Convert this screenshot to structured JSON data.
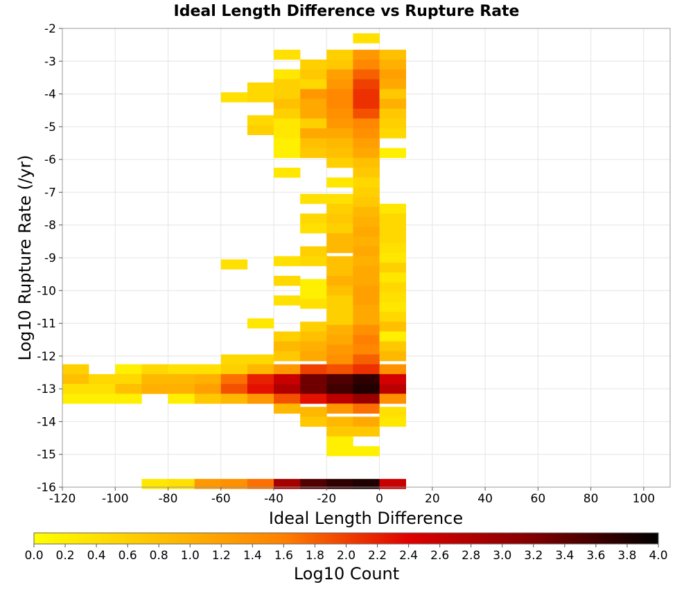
{
  "chart_data": {
    "type": "heatmap",
    "title": "Ideal Length Difference vs Rupture Rate",
    "xlabel": "Ideal Length Difference",
    "ylabel": "Log10 Rupture Rate (/yr)",
    "colorbar_label": "Log10 Count",
    "xlim": [
      -120,
      110
    ],
    "ylim": [
      -16,
      -2
    ],
    "x_ticks": [
      -120,
      -100,
      -80,
      -60,
      -40,
      -20,
      0,
      20,
      40,
      60,
      80,
      100
    ],
    "y_ticks": [
      -2,
      -3,
      -4,
      -5,
      -6,
      -7,
      -8,
      -9,
      -10,
      -11,
      -12,
      -13,
      -14,
      -15,
      -16
    ],
    "x_tick_labels": [
      "-120",
      "-100",
      "-80",
      "-60",
      "-40",
      "-20",
      "0",
      "20",
      "40",
      "60",
      "80",
      "100"
    ],
    "y_tick_labels": [
      "-2",
      "-3",
      "-4",
      "-5",
      "-6",
      "-7",
      "-8",
      "-9",
      "-10",
      "-11",
      "-12",
      "-13",
      "-14",
      "-15",
      "-16"
    ],
    "color_range": [
      0,
      4
    ],
    "colorbar_ticks": [
      "0.0",
      "0.2",
      "0.4",
      "0.6",
      "0.8",
      "1.0",
      "1.2",
      "1.4",
      "1.6",
      "1.8",
      "2.0",
      "2.2",
      "2.4",
      "2.6",
      "2.8",
      "3.0",
      "3.2",
      "3.4",
      "3.6",
      "3.8",
      "4.0"
    ],
    "colormap": [
      "#ffff00",
      "#ffc000",
      "#ff8000",
      "#e00000",
      "#800000",
      "#000000"
    ],
    "grid": true,
    "bin_width_x": 10,
    "bin_height_y": 0.3,
    "columns": [
      {
        "x0": -120,
        "cells": [
          [
            -12.4,
            0.6
          ],
          [
            -12.7,
            0.8
          ],
          [
            -13.0,
            0.4
          ],
          [
            -13.3,
            0.2
          ]
        ]
      },
      {
        "x0": -110,
        "cells": [
          [
            -12.7,
            0.5
          ],
          [
            -13.0,
            0.4
          ],
          [
            -13.3,
            0.2
          ]
        ]
      },
      {
        "x0": -100,
        "cells": [
          [
            -12.4,
            0.2
          ],
          [
            -12.7,
            0.5
          ],
          [
            -13.0,
            0.8
          ],
          [
            -13.3,
            0.2
          ]
        ]
      },
      {
        "x0": -90,
        "cells": [
          [
            -12.4,
            0.5
          ],
          [
            -12.7,
            0.9
          ],
          [
            -13.0,
            1.0
          ],
          [
            -15.9,
            0.3
          ]
        ]
      },
      {
        "x0": -80,
        "cells": [
          [
            -12.4,
            0.4
          ],
          [
            -12.7,
            0.9
          ],
          [
            -13.0,
            1.0
          ],
          [
            -13.3,
            0.2
          ],
          [
            -15.9,
            0.4
          ]
        ]
      },
      {
        "x0": -70,
        "cells": [
          [
            -12.4,
            0.4
          ],
          [
            -12.7,
            1.0
          ],
          [
            -13.0,
            1.2
          ],
          [
            -13.3,
            0.7
          ],
          [
            -15.9,
            1.3
          ]
        ]
      },
      {
        "x0": -60,
        "cells": [
          [
            -4.1,
            0.4
          ],
          [
            -9.2,
            0.4
          ],
          [
            -12.1,
            0.5
          ],
          [
            -12.4,
            0.6
          ],
          [
            -12.7,
            1.7
          ],
          [
            -13.0,
            1.9
          ],
          [
            -13.3,
            0.9
          ],
          [
            -15.9,
            1.4
          ]
        ]
      },
      {
        "x0": -50,
        "cells": [
          [
            -3.8,
            0.5
          ],
          [
            -4.1,
            0.5
          ],
          [
            -4.8,
            0.5
          ],
          [
            -5.1,
            0.6
          ],
          [
            -11.0,
            0.3
          ],
          [
            -12.1,
            0.5
          ],
          [
            -12.4,
            0.9
          ],
          [
            -12.7,
            2.2
          ],
          [
            -13.0,
            2.3
          ],
          [
            -13.3,
            1.3
          ],
          [
            -15.9,
            1.7
          ]
        ]
      },
      {
        "x0": -40,
        "cells": [
          [
            -2.8,
            0.4
          ],
          [
            -3.4,
            0.3
          ],
          [
            -3.7,
            0.6
          ],
          [
            -4.0,
            0.6
          ],
          [
            -4.3,
            0.8
          ],
          [
            -4.6,
            0.6
          ],
          [
            -4.9,
            0.3
          ],
          [
            -5.2,
            0.3
          ],
          [
            -5.5,
            0.2
          ],
          [
            -5.8,
            0.2
          ],
          [
            -6.4,
            0.3
          ],
          [
            -9.1,
            0.4
          ],
          [
            -9.7,
            0.5
          ],
          [
            -10.3,
            0.4
          ],
          [
            -11.4,
            0.6
          ],
          [
            -11.7,
            0.9
          ],
          [
            -12.0,
            0.7
          ],
          [
            -12.4,
            1.3
          ],
          [
            -12.7,
            2.6
          ],
          [
            -13.0,
            2.8
          ],
          [
            -13.3,
            1.9
          ],
          [
            -13.6,
            0.9
          ],
          [
            -15.9,
            2.9
          ]
        ]
      },
      {
        "x0": -30,
        "cells": [
          [
            -3.1,
            0.6
          ],
          [
            -3.4,
            0.7
          ],
          [
            -3.7,
            0.5
          ],
          [
            -4.0,
            1.3
          ],
          [
            -4.3,
            1.1
          ],
          [
            -4.6,
            1.1
          ],
          [
            -4.9,
            0.6
          ],
          [
            -5.2,
            1.1
          ],
          [
            -5.5,
            0.8
          ],
          [
            -5.8,
            0.7
          ],
          [
            -7.2,
            0.4
          ],
          [
            -7.8,
            0.5
          ],
          [
            -8.1,
            0.4
          ],
          [
            -8.8,
            0.6
          ],
          [
            -9.1,
            0.5
          ],
          [
            -9.8,
            0.2
          ],
          [
            -10.1,
            0.2
          ],
          [
            -10.4,
            0.4
          ],
          [
            -11.1,
            0.6
          ],
          [
            -11.4,
            0.8
          ],
          [
            -11.7,
            1.0
          ],
          [
            -12.0,
            1.1
          ],
          [
            -12.4,
            2.0
          ],
          [
            -12.7,
            3.3
          ],
          [
            -13.0,
            3.3
          ],
          [
            -13.3,
            2.3
          ],
          [
            -13.7,
            0.9
          ],
          [
            -14.0,
            0.7
          ],
          [
            -15.9,
            3.5
          ]
        ]
      },
      {
        "x0": -20,
        "cells": [
          [
            -2.8,
            0.6
          ],
          [
            -3.1,
            0.7
          ],
          [
            -3.4,
            1.2
          ],
          [
            -3.7,
            1.3
          ],
          [
            -4.0,
            1.5
          ],
          [
            -4.3,
            1.5
          ],
          [
            -4.6,
            1.4
          ],
          [
            -4.9,
            1.3
          ],
          [
            -5.2,
            1.1
          ],
          [
            -5.5,
            0.9
          ],
          [
            -5.8,
            0.8
          ],
          [
            -6.1,
            0.6
          ],
          [
            -6.7,
            0.3
          ],
          [
            -7.2,
            0.4
          ],
          [
            -7.5,
            0.6
          ],
          [
            -7.8,
            0.7
          ],
          [
            -8.1,
            0.6
          ],
          [
            -8.4,
            0.9
          ],
          [
            -8.7,
            0.9
          ],
          [
            -9.1,
            0.8
          ],
          [
            -9.4,
            0.8
          ],
          [
            -9.7,
            1.0
          ],
          [
            -10.0,
            0.8
          ],
          [
            -10.3,
            0.6
          ],
          [
            -10.6,
            0.6
          ],
          [
            -10.9,
            0.6
          ],
          [
            -11.2,
            1.0
          ],
          [
            -11.5,
            1.1
          ],
          [
            -11.8,
            1.3
          ],
          [
            -12.1,
            1.4
          ],
          [
            -12.4,
            1.9
          ],
          [
            -12.7,
            3.5
          ],
          [
            -13.0,
            3.6
          ],
          [
            -13.3,
            2.7
          ],
          [
            -13.6,
            1.3
          ],
          [
            -14.0,
            0.9
          ],
          [
            -14.3,
            0.7
          ],
          [
            -14.6,
            0.2
          ],
          [
            -14.9,
            0.2
          ],
          [
            -15.9,
            3.7
          ]
        ]
      },
      {
        "x0": -10,
        "cells": [
          [
            -2.3,
            0.4
          ],
          [
            -2.8,
            1.3
          ],
          [
            -3.1,
            1.5
          ],
          [
            -3.4,
            1.8
          ],
          [
            -3.7,
            2.0
          ],
          [
            -4.0,
            2.1
          ],
          [
            -4.3,
            2.1
          ],
          [
            -4.6,
            1.9
          ],
          [
            -4.9,
            1.5
          ],
          [
            -5.2,
            1.4
          ],
          [
            -5.5,
            1.2
          ],
          [
            -5.8,
            1.1
          ],
          [
            -6.1,
            0.8
          ],
          [
            -6.4,
            0.7
          ],
          [
            -6.7,
            0.5
          ],
          [
            -7.0,
            0.6
          ],
          [
            -7.3,
            0.7
          ],
          [
            -7.6,
            0.9
          ],
          [
            -7.9,
            1.0
          ],
          [
            -8.2,
            1.1
          ],
          [
            -8.5,
            1.0
          ],
          [
            -8.8,
            1.1
          ],
          [
            -9.1,
            1.0
          ],
          [
            -9.4,
            1.1
          ],
          [
            -9.7,
            1.1
          ],
          [
            -10.0,
            1.2
          ],
          [
            -10.3,
            1.2
          ],
          [
            -10.6,
            1.1
          ],
          [
            -10.9,
            1.1
          ],
          [
            -11.2,
            1.4
          ],
          [
            -11.5,
            1.6
          ],
          [
            -11.8,
            1.5
          ],
          [
            -12.1,
            1.8
          ],
          [
            -12.4,
            2.1
          ],
          [
            -12.7,
            3.7
          ],
          [
            -13.0,
            3.8
          ],
          [
            -13.3,
            3.0
          ],
          [
            -13.6,
            1.7
          ],
          [
            -14.0,
            1.1
          ],
          [
            -14.3,
            0.7
          ],
          [
            -14.9,
            0.2
          ],
          [
            -15.9,
            3.8
          ]
        ]
      },
      {
        "x0": 0,
        "cells": [
          [
            -2.8,
            0.8
          ],
          [
            -3.1,
            1.0
          ],
          [
            -3.4,
            1.2
          ],
          [
            -3.7,
            1.1
          ],
          [
            -4.0,
            0.7
          ],
          [
            -4.3,
            1.0
          ],
          [
            -4.6,
            0.7
          ],
          [
            -4.9,
            0.6
          ],
          [
            -5.2,
            0.5
          ],
          [
            -5.8,
            0.2
          ],
          [
            -7.5,
            0.3
          ],
          [
            -7.8,
            0.5
          ],
          [
            -8.1,
            0.5
          ],
          [
            -8.4,
            0.5
          ],
          [
            -8.7,
            0.4
          ],
          [
            -9.0,
            0.3
          ],
          [
            -9.3,
            0.6
          ],
          [
            -9.6,
            0.3
          ],
          [
            -9.9,
            0.5
          ],
          [
            -10.2,
            0.4
          ],
          [
            -10.5,
            0.3
          ],
          [
            -10.8,
            0.5
          ],
          [
            -11.1,
            0.8
          ],
          [
            -11.4,
            0.2
          ],
          [
            -11.7,
            0.7
          ],
          [
            -12.0,
            0.9
          ],
          [
            -12.4,
            1.4
          ],
          [
            -12.7,
            2.5
          ],
          [
            -13.0,
            2.7
          ],
          [
            -13.3,
            1.4
          ],
          [
            -13.7,
            0.4
          ],
          [
            -14.0,
            0.3
          ],
          [
            -15.9,
            2.6
          ]
        ]
      }
    ]
  }
}
